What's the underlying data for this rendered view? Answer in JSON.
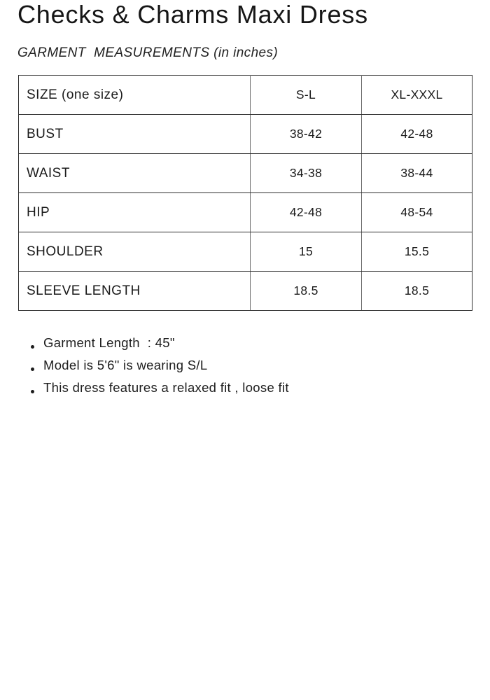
{
  "page": {
    "title": "Checks & Charms Maxi Dress",
    "subtitle": "GARMENT  MEASUREMENTS (in inches)"
  },
  "table": {
    "header": [
      "SIZE (one size)",
      "S-L",
      "XL-XXXL"
    ],
    "rows": [
      {
        "label": "BUST",
        "values": [
          "38-42",
          "42-48"
        ]
      },
      {
        "label": "WAIST",
        "values": [
          "34-38",
          "38-44"
        ]
      },
      {
        "label": "HIP",
        "values": [
          "42-48",
          "48-54"
        ]
      },
      {
        "label": "SHOULDER",
        "values": [
          "15",
          "15.5"
        ]
      },
      {
        "label": "SLEEVE LENGTH",
        "values": [
          "18.5",
          "18.5"
        ]
      }
    ]
  },
  "notes": [
    "Garment Length  : 45\"",
    "Model is 5'6\" is wearing S/L",
    "This dress features a relaxed fit , loose fit"
  ],
  "colors": {
    "background": "#ffffff",
    "text": "#1b1b1b",
    "border_horizontal": "#2e2e2e",
    "border_vertical": "#6d6d6d"
  }
}
